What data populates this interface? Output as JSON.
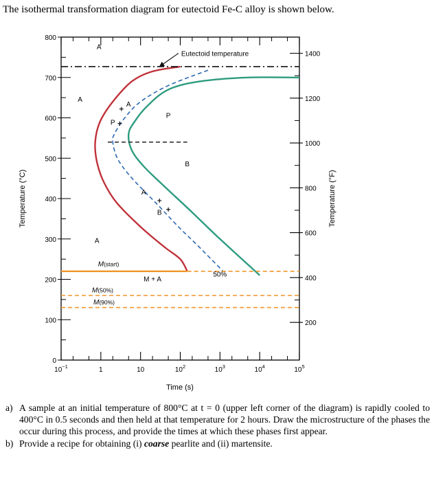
{
  "intro": "The isothermal transformation diagram for eutectoid Fe-C alloy is shown below.",
  "chart_data": {
    "type": "line",
    "x_scale": "log",
    "x_range": [
      0.1,
      100000
    ],
    "y_range": [
      0,
      800
    ],
    "y2_range": [
      32,
      1472
    ],
    "xlabel": "Time (s)",
    "ylabel": "Temperature (°C)",
    "y2label": "Temperature (°F)",
    "x_ticks": [
      {
        "value": 0.1,
        "base": "10",
        "exp": "−1"
      },
      {
        "value": 1,
        "base": "1",
        "exp": ""
      },
      {
        "value": 10,
        "base": "10",
        "exp": ""
      },
      {
        "value": 100,
        "base": "10",
        "exp": "2"
      },
      {
        "value": 1000,
        "base": "10",
        "exp": "3"
      },
      {
        "value": 10000,
        "base": "10",
        "exp": "4"
      },
      {
        "value": 100000,
        "base": "10",
        "exp": "5"
      }
    ],
    "y_ticks": [
      0,
      100,
      200,
      300,
      400,
      500,
      600,
      700,
      800
    ],
    "y2_ticks": [
      200,
      400,
      600,
      800,
      1000,
      1200,
      1400
    ],
    "series": [
      {
        "color": "#c0313a",
        "style": "solid",
        "points": [
          [
            100,
            727
          ],
          [
            20,
            715
          ],
          [
            6,
            690
          ],
          [
            2,
            640
          ],
          [
            0.95,
            590
          ],
          [
            0.72,
            540
          ],
          [
            0.8,
            490
          ],
          [
            1.2,
            440
          ],
          [
            2.5,
            390
          ],
          [
            10,
            330
          ],
          [
            40,
            280
          ],
          [
            100,
            250
          ],
          [
            150,
            220
          ]
        ]
      },
      {
        "color": "#2d9b7f",
        "style": "solid",
        "points": [
          [
            100000,
            700
          ],
          [
            5000,
            700
          ],
          [
            300,
            690
          ],
          [
            50,
            670
          ],
          [
            15,
            630
          ],
          [
            7,
            590
          ],
          [
            5,
            560
          ],
          [
            6,
            520
          ],
          [
            12,
            480
          ],
          [
            40,
            430
          ],
          [
            180,
            370
          ],
          [
            1000,
            300
          ],
          [
            10000,
            210
          ]
        ]
      },
      {
        "color": "#2f69b3",
        "style": "dashed",
        "points": [
          [
            500,
            718
          ],
          [
            50,
            680
          ],
          [
            10,
            640
          ],
          [
            4,
            600
          ],
          [
            2.2,
            560
          ],
          [
            2,
            540
          ],
          [
            2.6,
            500
          ],
          [
            5,
            460
          ],
          [
            12,
            420
          ],
          [
            30,
            380
          ],
          [
            90,
            330
          ],
          [
            300,
            280
          ],
          [
            1200,
            220
          ]
        ]
      },
      {
        "color": "#111111",
        "style": "dash-dot",
        "label": "Eutectoid temperature",
        "points": [
          [
            0.1,
            727
          ],
          [
            100000,
            727
          ]
        ]
      },
      {
        "color": "#333333",
        "style": "dashed",
        "points": [
          [
            1.5,
            540
          ],
          [
            150,
            540
          ]
        ]
      },
      {
        "color": "#f0962a",
        "style": "solid",
        "label": "M(start)",
        "points": [
          [
            0.1,
            220
          ],
          [
            150,
            220
          ]
        ]
      },
      {
        "color": "#f0962a",
        "style": "dashed",
        "points": [
          [
            150,
            220
          ],
          [
            100000,
            220
          ]
        ]
      },
      {
        "color": "#f0962a",
        "style": "dashed",
        "label": "M(50%)",
        "points": [
          [
            0.1,
            160
          ],
          [
            100000,
            160
          ]
        ]
      },
      {
        "color": "#f0962a",
        "style": "dashed",
        "label": "M(90%)",
        "points": [
          [
            0.1,
            130
          ],
          [
            100000,
            130
          ]
        ]
      }
    ],
    "markers": [
      {
        "color": "#111111",
        "points": [
          [
            3.3,
            622
          ],
          [
            3,
            586
          ],
          [
            30,
            395
          ],
          [
            50,
            373
          ]
        ]
      }
    ],
    "annotations": [
      {
        "text": "A",
        "x": 0.9,
        "y": 770
      },
      {
        "text": "A",
        "x": 0.3,
        "y": 640
      },
      {
        "text": "A",
        "x": 5,
        "y": 628
      },
      {
        "text": "P",
        "x": 2,
        "y": 583
      },
      {
        "text": "P",
        "x": 50,
        "y": 600
      },
      {
        "text": "B",
        "x": 150,
        "y": 480
      },
      {
        "text": "A",
        "x": 12,
        "y": 410
      },
      {
        "text": "B",
        "x": 30,
        "y": 360
      },
      {
        "text": "A",
        "x": 0.8,
        "y": 290
      },
      {
        "text": "M + A",
        "x": 20,
        "y": 195
      },
      {
        "text": "50%",
        "x": 1000,
        "y": 207
      }
    ],
    "pointer": {
      "text": "Eutectoid temperature",
      "from": [
        90,
        760
      ],
      "to": [
        30,
        727
      ]
    },
    "m_labels": [
      {
        "base": "M",
        "sub": "(start)",
        "x": 0.85,
        "y": 232
      },
      {
        "base": "M",
        "sub": "(50%)",
        "x": 0.6,
        "y": 168
      },
      {
        "base": "M",
        "sub": "(90%)",
        "x": 0.65,
        "y": 138
      }
    ]
  },
  "questions": [
    {
      "label": "a)",
      "text": "A sample at an initial temperature of 800°C at t = 0 (upper left corner of the diagram) is rapidly cooled to 400°C in 0.5 seconds and then held at that temperature for 2 hours.  Draw the microstructure of the phases the occur during this process, and provide the times at which these phases first appear."
    },
    {
      "label": "b)",
      "text_before": "Provide a recipe for obtaining (i) ",
      "emphasis": "coarse",
      "text_after": " pearlite and (ii) martensite."
    }
  ]
}
